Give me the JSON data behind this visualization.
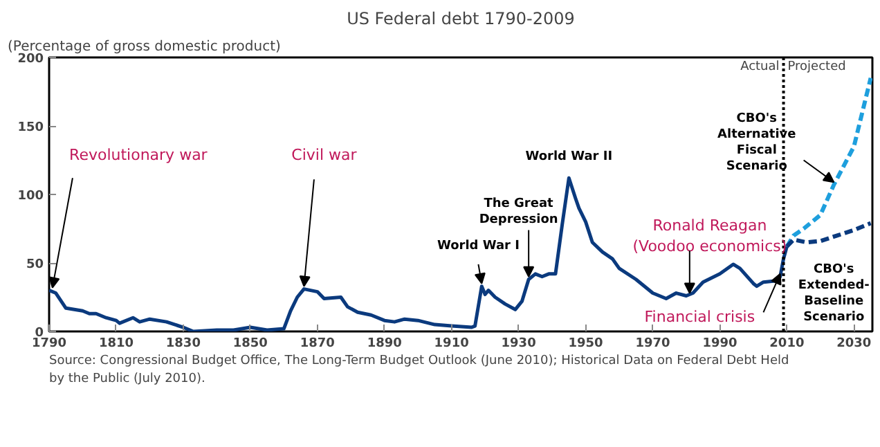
{
  "chart_data": {
    "type": "line",
    "title": "US Federal debt 1790-2009",
    "ylabel": "(Percentage of gross domestic product)",
    "xlim": [
      1790,
      2035.5
    ],
    "ylim": [
      0,
      200
    ],
    "xticks": [
      1790,
      1810,
      1830,
      1850,
      1870,
      1890,
      1910,
      1930,
      1950,
      1970,
      1990,
      2010,
      2030
    ],
    "yticks": [
      0,
      50,
      100,
      150,
      200
    ],
    "grid": false,
    "marker": "none",
    "series": [
      {
        "color": "#0b3a7e",
        "line_style": "solid",
        "x": [
          1790,
          1792,
          1795,
          1800,
          1802,
          1804,
          1807,
          1810,
          1811,
          1815,
          1817,
          1820,
          1825,
          1830,
          1833,
          1840,
          1845,
          1850,
          1855,
          1860,
          1862,
          1864,
          1866,
          1870,
          1872,
          1877,
          1879,
          1882,
          1886,
          1890,
          1893,
          1896,
          1900,
          1905,
          1910,
          1916,
          1917,
          1919,
          1920,
          1921,
          1923,
          1926,
          1929,
          1931,
          1933,
          1935,
          1937,
          1939,
          1941,
          1943,
          1945,
          1947,
          1948,
          1950,
          1952,
          1955,
          1958,
          1960,
          1965,
          1970,
          1974,
          1977,
          1980,
          1982,
          1985,
          1990,
          1994,
          1996,
          2000,
          2001,
          2003,
          2007,
          2008,
          2009,
          2010
        ],
        "values": [
          30,
          28,
          17,
          15,
          13,
          13,
          10,
          8,
          6,
          10,
          7,
          9,
          7,
          3,
          0,
          1,
          1,
          3,
          1,
          2,
          15,
          25,
          31,
          29,
          24,
          25,
          18,
          14,
          12,
          8,
          7,
          9,
          8,
          5,
          4,
          3,
          4,
          33,
          27,
          30,
          25,
          20,
          16,
          22,
          38,
          42,
          40,
          42,
          42,
          78,
          112,
          97,
          90,
          80,
          65,
          58,
          53,
          46,
          38,
          28,
          24,
          28,
          26,
          28,
          36,
          42,
          49,
          46,
          35,
          33,
          36,
          37,
          40,
          53,
          62
        ]
      },
      {
        "color": "#1e9fdd",
        "line_style": "dashed",
        "x": [
          2010,
          2012,
          2015,
          2020,
          2024,
          2030,
          2035
        ],
        "values": [
          62,
          70,
          75,
          85,
          107,
          135,
          185
        ]
      },
      {
        "color": "#0b3a7e",
        "line_style": "dashed",
        "x": [
          2010,
          2012,
          2016,
          2020,
          2025,
          2030,
          2035
        ],
        "values": [
          62,
          67,
          65,
          66,
          70,
          74,
          79
        ]
      }
    ],
    "ref_lines": [
      {
        "axis": "x",
        "value": 2009,
        "line_style": "dotted",
        "color": "#000000"
      }
    ],
    "annotations": [
      {
        "text": "Revolutionary war",
        "x": 1791,
        "y": 30
      },
      {
        "text": "Civil war",
        "x": 1866,
        "y": 31
      },
      {
        "text": "World War I",
        "x": 1919,
        "y": 33
      },
      {
        "text": "The Great Depression",
        "x": 1933,
        "y": 38
      },
      {
        "text": "World War II",
        "x": 1945,
        "y": 112
      },
      {
        "text": "Ronald Reagan (Voodoo economics)",
        "x": 1981,
        "y": 26
      },
      {
        "text": "Financial crisis",
        "x": 2008,
        "y": 40
      },
      {
        "text": "CBO's Alternative Fiscal Scenario",
        "x": 2024,
        "y": 107
      },
      {
        "text": "CBO's Extended-Baseline Scenario",
        "x": 2025,
        "y": 70
      },
      "Actual",
      "Projected",
      "Source:    Congressional Budget Office, The Long-Term Budget Outlook (June 2010); Historical Data on Federal Debt Held by the Public (July 2010)."
    ]
  }
}
